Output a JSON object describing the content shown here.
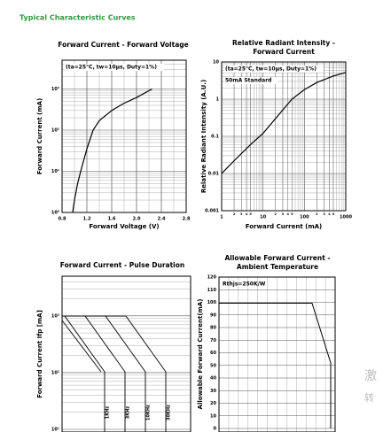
{
  "page_title": "Typical Characteristic Curves",
  "watermark": [
    "激",
    "转"
  ],
  "chart_data": [
    {
      "type": "line",
      "title": "Forward Current - Forward Voltage",
      "xlabel": "Forward Voltage (V)",
      "ylabel": "Forward Current (mA)",
      "annotations": [
        "(ta=25°C, tw=10μs, Duty=1%)"
      ],
      "xlim": [
        0.8,
        2.8
      ],
      "xticks": [
        0.8,
        1.2,
        1.6,
        {
          "value": 2,
          "label": "2.0"
        },
        2.4,
        2.8
      ],
      "ylim": [
        1,
        5000
      ],
      "ylog": true,
      "yticks": [
        {
          "value": 1,
          "label": "10⁰"
        },
        {
          "value": 10,
          "label": "10¹"
        },
        {
          "value": 100,
          "label": "10²"
        },
        {
          "value": 1000,
          "label": "10³"
        }
      ],
      "grid": true,
      "series": [
        {
          "color": "#000000",
          "x": [
            0.97,
            1.0,
            1.05,
            1.1,
            1.2,
            1.3,
            1.4,
            1.6,
            1.8,
            2.0,
            2.25
          ],
          "values": [
            1,
            2,
            5,
            10,
            35,
            100,
            170,
            300,
            450,
            620,
            1000
          ]
        }
      ]
    },
    {
      "type": "line",
      "title": [
        "Relative Radiant Intensity -",
        "Forward Current"
      ],
      "xlabel": "Forward Current (mA)",
      "ylabel": "Relative Radiant Intensity (A.U.)",
      "annotations": [
        "(ta=25°C, tw=10μs, Duty=1%)",
        "50mA Standard"
      ],
      "xlim": [
        1,
        1000
      ],
      "xlog": true,
      "xticks": [
        1,
        2,
        3,
        4,
        5,
        10,
        {
          "value": 20,
          "label": "2"
        },
        {
          "value": 30,
          "label": "3"
        },
        {
          "value": 40,
          "label": "4"
        },
        {
          "value": 50,
          "label": "5"
        },
        100,
        {
          "value": 200,
          "label": "2"
        },
        {
          "value": 300,
          "label": "3"
        },
        {
          "value": 400,
          "label": "4"
        },
        {
          "value": 500,
          "label": "5"
        },
        1000
      ],
      "ylim": [
        0.001,
        10
      ],
      "ylog": true,
      "yticks": [
        0.001,
        0.01,
        0.1,
        1,
        10
      ],
      "grid": true,
      "series": [
        {
          "color": "#000000",
          "x": [
            1,
            2,
            5,
            10,
            20,
            50,
            100,
            200,
            500,
            1000
          ],
          "values": [
            0.01,
            0.022,
            0.06,
            0.12,
            0.3,
            1,
            1.8,
            2.8,
            4.2,
            5.2
          ]
        }
      ]
    },
    {
      "type": "line",
      "title": "Forward Current - Pulse Duration",
      "ylabel": "Forward Current Ifp [mA]",
      "curve_labels": [
        "1KHz",
        "3KHz",
        "10KHz",
        "30KHz"
      ],
      "ylim": [
        10,
        5000
      ],
      "ylog": true,
      "yticks": [
        {
          "value": 10,
          "label": "10¹"
        },
        {
          "value": 100,
          "label": "10²"
        },
        {
          "value": 1000,
          "label": "10³"
        }
      ],
      "grid": true
    },
    {
      "type": "line",
      "title": [
        "Allowable Forward Current -",
        "Ambient Temperature"
      ],
      "ylabel": "Allowable Forward Current(mA)",
      "annotations": [
        "Rthjs=250K/W"
      ],
      "ylim": [
        0,
        120
      ],
      "yticks": [
        0,
        10,
        20,
        30,
        40,
        50,
        60,
        70,
        80,
        90,
        100,
        110,
        120
      ],
      "grid": true
    }
  ]
}
